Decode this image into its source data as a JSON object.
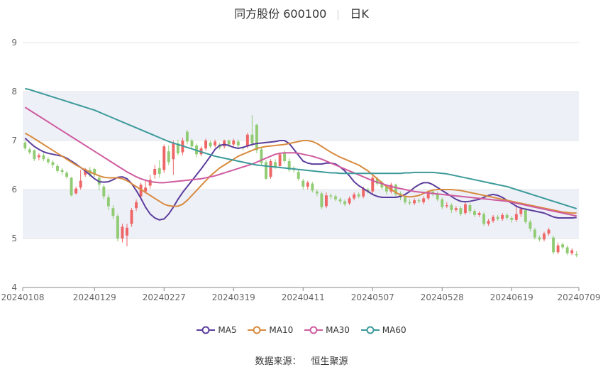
{
  "title": {
    "name": "同方股份 600100",
    "period": "日K"
  },
  "source": {
    "label": "数据来源：",
    "value": "恒生聚源"
  },
  "colors": {
    "up": "#ee6666",
    "down": "#91cc75",
    "MA5": "#5b3d9c",
    "MA10": "#d88b3f",
    "MA30": "#cf5b9f",
    "MA60": "#3c9a9a",
    "band": "#eef0f8",
    "grid": "#e6e6e6",
    "axis": "#666666"
  },
  "chart_data": {
    "type": "candlestick",
    "title": "同方股份 600100",
    "subtitle": "日K",
    "ylim": [
      4,
      9
    ],
    "yticks": [
      4,
      5,
      6,
      7,
      8,
      9
    ],
    "xtick_labels": [
      "20240108",
      "20240129",
      "20240227",
      "20240319",
      "20240411",
      "20240507",
      "20240528",
      "20240619",
      "20240709"
    ],
    "xtick_index": [
      0,
      15,
      30,
      45,
      60,
      75,
      90,
      105,
      119
    ],
    "legend": [
      "MA5",
      "MA10",
      "MA30",
      "MA60"
    ],
    "legend_position": "bottom",
    "n_days": 120,
    "ohlc": [
      [
        6.96,
        6.84,
        7.0,
        6.8
      ],
      [
        6.82,
        6.76,
        6.86,
        6.72
      ],
      [
        6.8,
        6.62,
        6.82,
        6.58
      ],
      [
        6.66,
        6.7,
        6.74,
        6.6
      ],
      [
        6.7,
        6.62,
        6.74,
        6.58
      ],
      [
        6.62,
        6.56,
        6.66,
        6.52
      ],
      [
        6.56,
        6.5,
        6.6,
        6.44
      ],
      [
        6.48,
        6.38,
        6.52,
        6.34
      ],
      [
        6.4,
        6.36,
        6.44,
        6.3
      ],
      [
        6.34,
        6.26,
        6.38,
        6.22
      ],
      [
        6.24,
        5.88,
        6.26,
        5.86
      ],
      [
        5.92,
        6.02,
        6.06,
        5.9
      ],
      [
        6.04,
        6.18,
        6.4,
        6.0
      ],
      [
        6.3,
        6.42,
        6.44,
        6.26
      ],
      [
        6.4,
        6.3,
        6.46,
        6.26
      ],
      [
        6.42,
        6.3,
        6.44,
        6.26
      ],
      [
        6.24,
        6.1,
        6.28,
        5.98
      ],
      [
        6.06,
        5.86,
        6.1,
        5.8
      ],
      [
        5.84,
        5.66,
        5.9,
        5.58
      ],
      [
        5.62,
        5.46,
        5.68,
        5.4
      ],
      [
        5.46,
        5.0,
        5.5,
        4.94
      ],
      [
        5.0,
        5.24,
        5.3,
        4.92
      ],
      [
        5.06,
        5.22,
        5.3,
        4.84
      ],
      [
        5.3,
        5.58,
        5.62,
        5.24
      ],
      [
        5.62,
        5.74,
        5.8,
        5.56
      ],
      [
        5.86,
        6.1,
        6.14,
        5.8
      ],
      [
        5.96,
        6.04,
        6.18,
        5.92
      ],
      [
        6.08,
        6.2,
        6.3,
        6.02
      ],
      [
        6.3,
        6.42,
        6.5,
        6.22
      ],
      [
        6.44,
        6.32,
        6.6,
        6.24
      ],
      [
        6.4,
        6.88,
        6.92,
        6.34
      ],
      [
        6.78,
        6.56,
        6.9,
        6.5
      ],
      [
        6.62,
        6.94,
        7.0,
        6.3
      ],
      [
        6.94,
        6.74,
        7.02,
        6.7
      ],
      [
        6.76,
        7.0,
        7.06,
        6.7
      ],
      [
        7.18,
        6.98,
        7.22,
        6.92
      ],
      [
        7.0,
        6.88,
        7.04,
        6.82
      ],
      [
        6.9,
        6.72,
        6.94,
        6.66
      ],
      [
        6.72,
        6.84,
        6.88,
        6.68
      ],
      [
        6.84,
        7.0,
        7.04,
        6.8
      ],
      [
        6.96,
        6.88,
        7.0,
        6.84
      ],
      [
        6.9,
        6.98,
        7.02,
        6.86
      ],
      [
        6.92,
        6.86,
        6.96,
        6.82
      ],
      [
        6.88,
        7.0,
        7.02,
        6.84
      ],
      [
        7.0,
        6.92,
        7.02,
        6.86
      ],
      [
        6.92,
        7.0,
        7.04,
        6.88
      ],
      [
        6.98,
        6.9,
        7.02,
        6.86
      ],
      [
        6.86,
        6.84,
        6.88,
        6.8
      ],
      [
        6.88,
        7.12,
        7.16,
        6.84
      ],
      [
        7.12,
        6.94,
        7.52,
        6.88
      ],
      [
        7.32,
        6.8,
        7.34,
        6.74
      ],
      [
        6.82,
        6.54,
        6.86,
        6.48
      ],
      [
        6.56,
        6.22,
        6.6,
        6.2
      ],
      [
        6.26,
        6.58,
        6.62,
        6.22
      ],
      [
        6.56,
        6.46,
        6.62,
        6.42
      ],
      [
        6.48,
        6.72,
        6.76,
        6.44
      ],
      [
        6.74,
        6.58,
        6.8,
        6.54
      ],
      [
        6.58,
        6.4,
        6.64,
        6.36
      ],
      [
        6.44,
        6.4,
        6.48,
        6.34
      ],
      [
        6.36,
        6.22,
        6.4,
        6.18
      ],
      [
        6.18,
        6.06,
        6.22,
        6.0
      ],
      [
        6.06,
        6.14,
        6.18,
        6.0
      ],
      [
        6.12,
        5.98,
        6.16,
        5.94
      ],
      [
        5.96,
        5.92,
        6.0,
        5.86
      ],
      [
        5.92,
        5.64,
        5.96,
        5.6
      ],
      [
        5.66,
        5.88,
        5.94,
        5.62
      ],
      [
        5.88,
        5.86,
        5.92,
        5.8
      ],
      [
        5.86,
        5.8,
        5.9,
        5.76
      ],
      [
        5.8,
        5.76,
        5.84,
        5.7
      ],
      [
        5.76,
        5.7,
        5.8,
        5.66
      ],
      [
        5.72,
        5.82,
        5.86,
        5.68
      ],
      [
        5.82,
        5.9,
        5.94,
        5.78
      ],
      [
        5.9,
        5.86,
        5.94,
        5.82
      ],
      [
        5.86,
        6.02,
        6.06,
        5.82
      ],
      [
        6.0,
        5.96,
        6.04,
        5.92
      ],
      [
        5.96,
        6.24,
        6.28,
        5.92
      ],
      [
        6.22,
        6.12,
        6.26,
        6.08
      ],
      [
        6.14,
        6.04,
        6.18,
        6.0
      ],
      [
        6.06,
        5.96,
        6.1,
        5.9
      ],
      [
        5.96,
        6.1,
        6.14,
        5.92
      ],
      [
        6.1,
        5.9,
        6.12,
        5.86
      ],
      [
        5.92,
        5.84,
        5.96,
        5.78
      ],
      [
        5.84,
        5.74,
        5.88,
        5.7
      ],
      [
        5.74,
        5.72,
        5.8,
        5.68
      ],
      [
        5.72,
        5.78,
        5.82,
        5.68
      ],
      [
        5.78,
        5.76,
        5.82,
        5.72
      ],
      [
        5.74,
        5.82,
        5.86,
        5.7
      ],
      [
        5.82,
        5.96,
        5.98,
        5.78
      ],
      [
        5.96,
        5.9,
        6.0,
        5.86
      ],
      [
        5.92,
        5.8,
        5.96,
        5.76
      ],
      [
        5.8,
        5.64,
        5.84,
        5.6
      ],
      [
        5.66,
        5.68,
        5.74,
        5.62
      ],
      [
        5.68,
        5.58,
        5.72,
        5.52
      ],
      [
        5.58,
        5.62,
        5.66,
        5.54
      ],
      [
        5.62,
        5.5,
        5.66,
        5.46
      ],
      [
        5.52,
        5.7,
        5.74,
        5.48
      ],
      [
        5.68,
        5.56,
        5.72,
        5.5
      ],
      [
        5.56,
        5.48,
        5.6,
        5.44
      ],
      [
        5.48,
        5.52,
        5.56,
        5.44
      ],
      [
        5.5,
        5.3,
        5.54,
        5.26
      ],
      [
        5.3,
        5.36,
        5.4,
        5.26
      ],
      [
        5.36,
        5.44,
        5.48,
        5.32
      ],
      [
        5.44,
        5.4,
        5.48,
        5.36
      ],
      [
        5.4,
        5.48,
        5.52,
        5.36
      ],
      [
        5.48,
        5.42,
        5.52,
        5.38
      ],
      [
        5.42,
        5.38,
        5.46,
        5.32
      ],
      [
        5.38,
        5.5,
        5.68,
        5.34
      ],
      [
        5.5,
        5.6,
        5.64,
        5.44
      ],
      [
        5.58,
        5.34,
        5.62,
        5.3
      ],
      [
        5.34,
        5.2,
        5.38,
        5.14
      ],
      [
        5.18,
        5.02,
        5.22,
        4.98
      ],
      [
        5.02,
        4.98,
        5.06,
        4.94
      ],
      [
        4.98,
        5.1,
        5.14,
        4.94
      ],
      [
        5.1,
        5.18,
        5.22,
        5.06
      ],
      [
        5.02,
        4.72,
        5.06,
        4.68
      ],
      [
        4.72,
        4.86,
        4.92,
        4.68
      ],
      [
        4.88,
        4.82,
        4.92,
        4.78
      ],
      [
        4.82,
        4.7,
        4.86,
        4.66
      ],
      [
        4.7,
        4.76,
        4.8,
        4.66
      ],
      [
        4.68,
        4.66,
        4.74,
        4.62
      ]
    ],
    "series": [
      {
        "name": "MA5",
        "values": [
          7.05,
          6.96,
          6.88,
          6.82,
          6.77,
          6.74,
          6.72,
          6.7,
          6.68,
          6.64,
          6.58,
          6.52,
          6.45,
          6.38,
          6.3,
          6.22,
          6.16,
          6.15,
          6.16,
          6.2,
          6.25,
          6.26,
          6.22,
          6.12,
          5.98,
          5.82,
          5.64,
          5.5,
          5.42,
          5.38,
          5.4,
          5.5,
          5.64,
          5.8,
          5.94,
          6.06,
          6.18,
          6.3,
          6.42,
          6.55,
          6.68,
          6.82,
          6.9,
          6.92,
          6.9,
          6.86,
          6.84,
          6.86,
          6.89,
          6.92,
          6.94,
          6.95,
          6.96,
          6.97,
          6.98,
          7.0,
          7.0,
          6.94,
          6.82,
          6.7,
          6.58,
          6.54,
          6.52,
          6.52,
          6.52,
          6.54,
          6.54,
          6.52,
          6.46,
          6.38,
          6.28,
          6.16,
          6.08,
          6.02,
          5.96,
          5.9,
          5.86,
          5.84,
          5.84,
          5.84,
          5.84,
          5.86,
          5.9,
          5.96,
          6.04,
          6.1,
          6.14,
          6.14,
          6.1,
          6.04,
          5.98,
          5.92,
          5.86,
          5.8,
          5.76,
          5.75,
          5.76,
          5.78,
          5.8,
          5.84,
          5.88,
          5.9,
          5.88,
          5.84,
          5.78,
          5.72,
          5.66,
          5.62,
          5.6,
          5.58,
          5.56,
          5.54,
          5.52,
          5.48,
          5.44,
          5.42,
          5.42,
          5.42,
          5.42,
          5.43
        ]
      },
      {
        "name": "MA10",
        "values": [
          7.15,
          7.1,
          7.04,
          6.98,
          6.92,
          6.86,
          6.8,
          6.74,
          6.68,
          6.62,
          6.56,
          6.5,
          6.45,
          6.4,
          6.36,
          6.32,
          6.28,
          6.25,
          6.24,
          6.24,
          6.24,
          6.22,
          6.18,
          6.12,
          6.06,
          6.0,
          5.94,
          5.88,
          5.82,
          5.76,
          5.7,
          5.67,
          5.66,
          5.66,
          5.7,
          5.78,
          5.88,
          5.98,
          6.08,
          6.18,
          6.28,
          6.36,
          6.44,
          6.5,
          6.56,
          6.62,
          6.68,
          6.72,
          6.76,
          6.8,
          6.84,
          6.86,
          6.88,
          6.89,
          6.9,
          6.91,
          6.92,
          6.94,
          6.96,
          6.98,
          7.0,
          7.0,
          6.98,
          6.94,
          6.88,
          6.82,
          6.76,
          6.71,
          6.66,
          6.62,
          6.58,
          6.54,
          6.5,
          6.44,
          6.38,
          6.3,
          6.22,
          6.14,
          6.06,
          6.0,
          5.94,
          5.89,
          5.86,
          5.85,
          5.86,
          5.88,
          5.92,
          5.96,
          5.99,
          6.0,
          6.0,
          6.0,
          6.0,
          5.99,
          5.98,
          5.96,
          5.94,
          5.92,
          5.9,
          5.88,
          5.86,
          5.84,
          5.82,
          5.8,
          5.78,
          5.76,
          5.74,
          5.72,
          5.7,
          5.68,
          5.66,
          5.64,
          5.62,
          5.6,
          5.58,
          5.56,
          5.54,
          5.53,
          5.52,
          5.52
        ]
      },
      {
        "name": "MA30",
        "values": [
          7.68,
          7.62,
          7.56,
          7.5,
          7.44,
          7.38,
          7.32,
          7.26,
          7.2,
          7.14,
          7.08,
          7.02,
          6.96,
          6.9,
          6.84,
          6.78,
          6.72,
          6.66,
          6.6,
          6.54,
          6.48,
          6.42,
          6.36,
          6.31,
          6.26,
          6.22,
          6.19,
          6.16,
          6.15,
          6.14,
          6.14,
          6.15,
          6.16,
          6.17,
          6.18,
          6.19,
          6.2,
          6.21,
          6.22,
          6.24,
          6.26,
          6.28,
          6.31,
          6.34,
          6.37,
          6.4,
          6.43,
          6.46,
          6.49,
          6.52,
          6.56,
          6.6,
          6.64,
          6.68,
          6.72,
          6.74,
          6.75,
          6.75,
          6.75,
          6.74,
          6.72,
          6.7,
          6.68,
          6.65,
          6.62,
          6.58,
          6.54,
          6.5,
          6.46,
          6.42,
          6.38,
          6.34,
          6.3,
          6.26,
          6.22,
          6.18,
          6.15,
          6.12,
          6.09,
          6.06,
          6.04,
          6.02,
          6.0,
          5.98,
          5.96,
          5.95,
          5.94,
          5.93,
          5.92,
          5.91,
          5.9,
          5.89,
          5.88,
          5.87,
          5.86,
          5.85,
          5.84,
          5.83,
          5.82,
          5.81,
          5.8,
          5.79,
          5.78,
          5.77,
          5.76,
          5.74,
          5.72,
          5.7,
          5.68,
          5.66,
          5.64,
          5.62,
          5.6,
          5.58,
          5.56,
          5.54,
          5.52,
          5.5,
          5.48,
          5.46
        ]
      },
      {
        "name": "MA60",
        "values": [
          8.06,
          8.04,
          8.01,
          7.98,
          7.95,
          7.92,
          7.89,
          7.86,
          7.83,
          7.8,
          7.77,
          7.74,
          7.71,
          7.68,
          7.65,
          7.62,
          7.58,
          7.54,
          7.5,
          7.46,
          7.42,
          7.38,
          7.34,
          7.3,
          7.26,
          7.22,
          7.18,
          7.14,
          7.1,
          7.06,
          7.02,
          6.98,
          6.95,
          6.92,
          6.89,
          6.86,
          6.83,
          6.8,
          6.77,
          6.74,
          6.71,
          6.68,
          6.66,
          6.64,
          6.62,
          6.6,
          6.58,
          6.56,
          6.54,
          6.52,
          6.5,
          6.49,
          6.48,
          6.47,
          6.46,
          6.45,
          6.44,
          6.43,
          6.42,
          6.41,
          6.4,
          6.39,
          6.38,
          6.37,
          6.36,
          6.35,
          6.34,
          6.34,
          6.33,
          6.33,
          6.33,
          6.33,
          6.33,
          6.33,
          6.33,
          6.33,
          6.33,
          6.33,
          6.33,
          6.33,
          6.33,
          6.33,
          6.34,
          6.34,
          6.35,
          6.35,
          6.35,
          6.35,
          6.35,
          6.34,
          6.33,
          6.32,
          6.3,
          6.28,
          6.26,
          6.24,
          6.22,
          6.2,
          6.18,
          6.16,
          6.14,
          6.12,
          6.1,
          6.08,
          6.06,
          6.03,
          6.0,
          5.97,
          5.94,
          5.91,
          5.88,
          5.85,
          5.82,
          5.79,
          5.76,
          5.73,
          5.7,
          5.67,
          5.64,
          5.61
        ]
      }
    ]
  }
}
